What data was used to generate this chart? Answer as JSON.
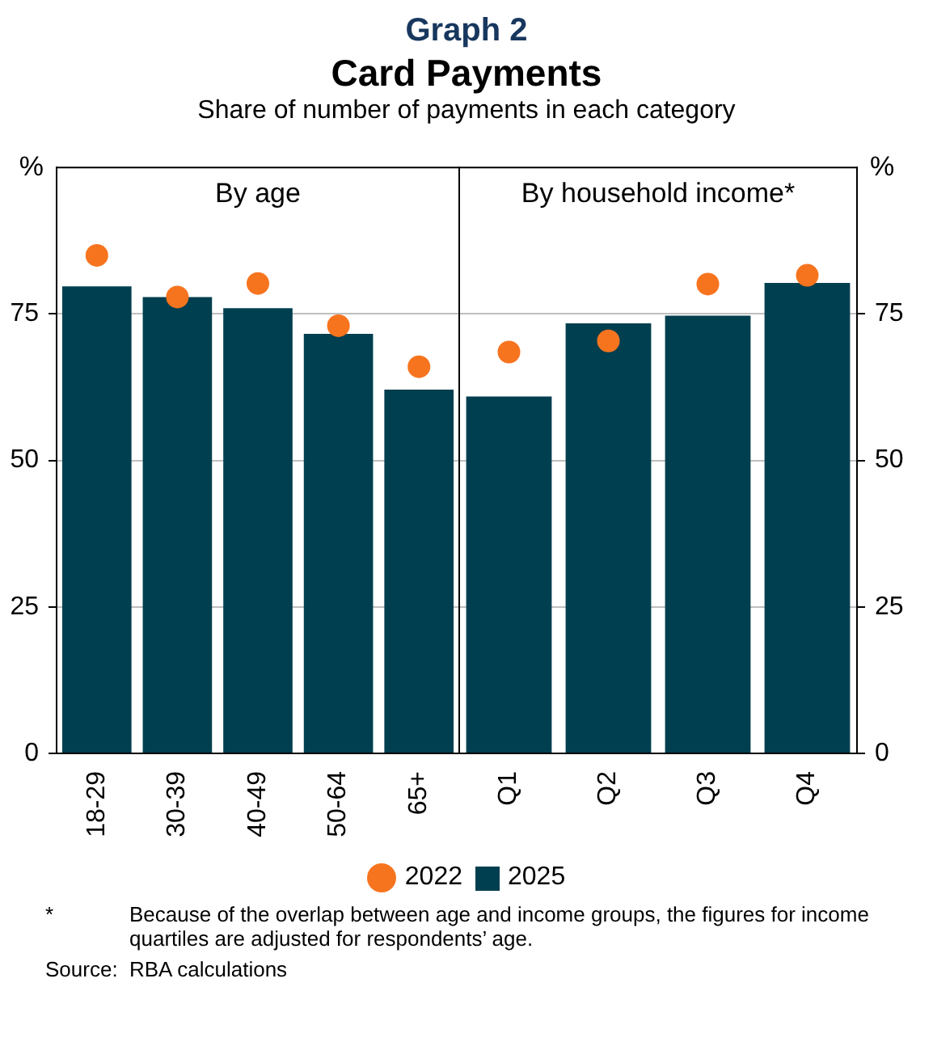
{
  "chart_data": [
    {
      "type": "bar",
      "title": "By age",
      "ylabel": "%",
      "categories": [
        "18-29",
        "30-39",
        "40-49",
        "50-64",
        "65+"
      ],
      "series": [
        {
          "name": "2022",
          "type": "scatter",
          "color": "#f7741f",
          "x": [
            "18-29",
            "30-39",
            "40-49",
            "50-64",
            "65+"
          ],
          "values": [
            85.0,
            77.9,
            80.2,
            73.0,
            66.0
          ]
        },
        {
          "name": "2025",
          "type": "bar",
          "color": "#003f4f",
          "values": [
            79.7,
            77.9,
            76.0,
            71.6,
            62.1
          ]
        }
      ],
      "ylim": [
        0,
        100
      ],
      "yticks": [
        0,
        25,
        50,
        75
      ],
      "annotations": [
        "Graph 2",
        "Card Payments",
        "Share of number of payments in each category",
        "*\tBecause of the overlap between age and income groups, the figures for income quartiles are adjusted for respondents’ age.",
        "Source:\tRBA calculations"
      ],
      "grid": "y",
      "legend": "bottom",
      "marker": "circle"
    },
    {
      "type": "bar",
      "title": "By household income*",
      "y2label": "%",
      "categories": [
        "Q1",
        "Q2",
        "Q3",
        "Q4"
      ],
      "series": [
        {
          "type": "scatter",
          "color": "#f7741f",
          "axis": "y2",
          "x": [
            "Q1",
            "Q2",
            "Q3",
            "Q4"
          ],
          "values": [
            68.5,
            70.4,
            80.1,
            81.6
          ]
        },
        {
          "type": "bar",
          "color": "#003f4f",
          "axis": "y2",
          "values": [
            60.9,
            73.4,
            74.7,
            80.3
          ]
        }
      ],
      "y2lim": [
        0,
        100
      ],
      "y2ticks": [
        0,
        25,
        50,
        75
      ],
      "grid": "y",
      "marker": "circle"
    }
  ]
}
